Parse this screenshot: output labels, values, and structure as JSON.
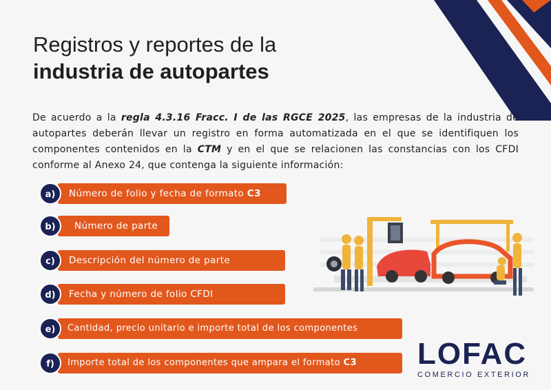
{
  "title": {
    "line1": "Registros y reportes de la",
    "line2": "industria de autopartes"
  },
  "intro": {
    "part1": "De acuerdo a la ",
    "rule": "regla 4.3.16 Fracc. I de las RGCE 2025",
    "part2": ", las empresas de la industria de autopartes deberán llevar un registro en forma automatizada en el que se identifiquen los componentes contenidos en la ",
    "ctm": "CTM",
    "part3": " y en el que se relacionen las constancias con los CFDI conforme al Anexo 24, que contenga la siguiente información:"
  },
  "items": [
    {
      "badge": "a)",
      "text": "Número de folio y fecha de formato ",
      "bold": "C3"
    },
    {
      "badge": "b)",
      "text": "Número de parte",
      "bold": ""
    },
    {
      "badge": "c)",
      "text": "Descripción del número de parte",
      "bold": ""
    },
    {
      "badge": "d)",
      "text": "Fecha y número de folio CFDI",
      "bold": ""
    },
    {
      "badge": "e)",
      "text": "Cantidad, precio unitario e importe total de los componentes",
      "bold": ""
    },
    {
      "badge": "f)",
      "text": "Importe total de los componentes que ampara el formato ",
      "bold": "C3"
    }
  ],
  "logo": {
    "wordmark": "LOFAC",
    "subtitle": "COMERCIO EXTERIOR"
  },
  "colors": {
    "accent": "#e2571c",
    "navy": "#1b2254",
    "background": "#f6f6f6"
  },
  "icons": {
    "illustration": "car-assembly-line-illustration",
    "corner": "corner-stripes-decoration"
  }
}
